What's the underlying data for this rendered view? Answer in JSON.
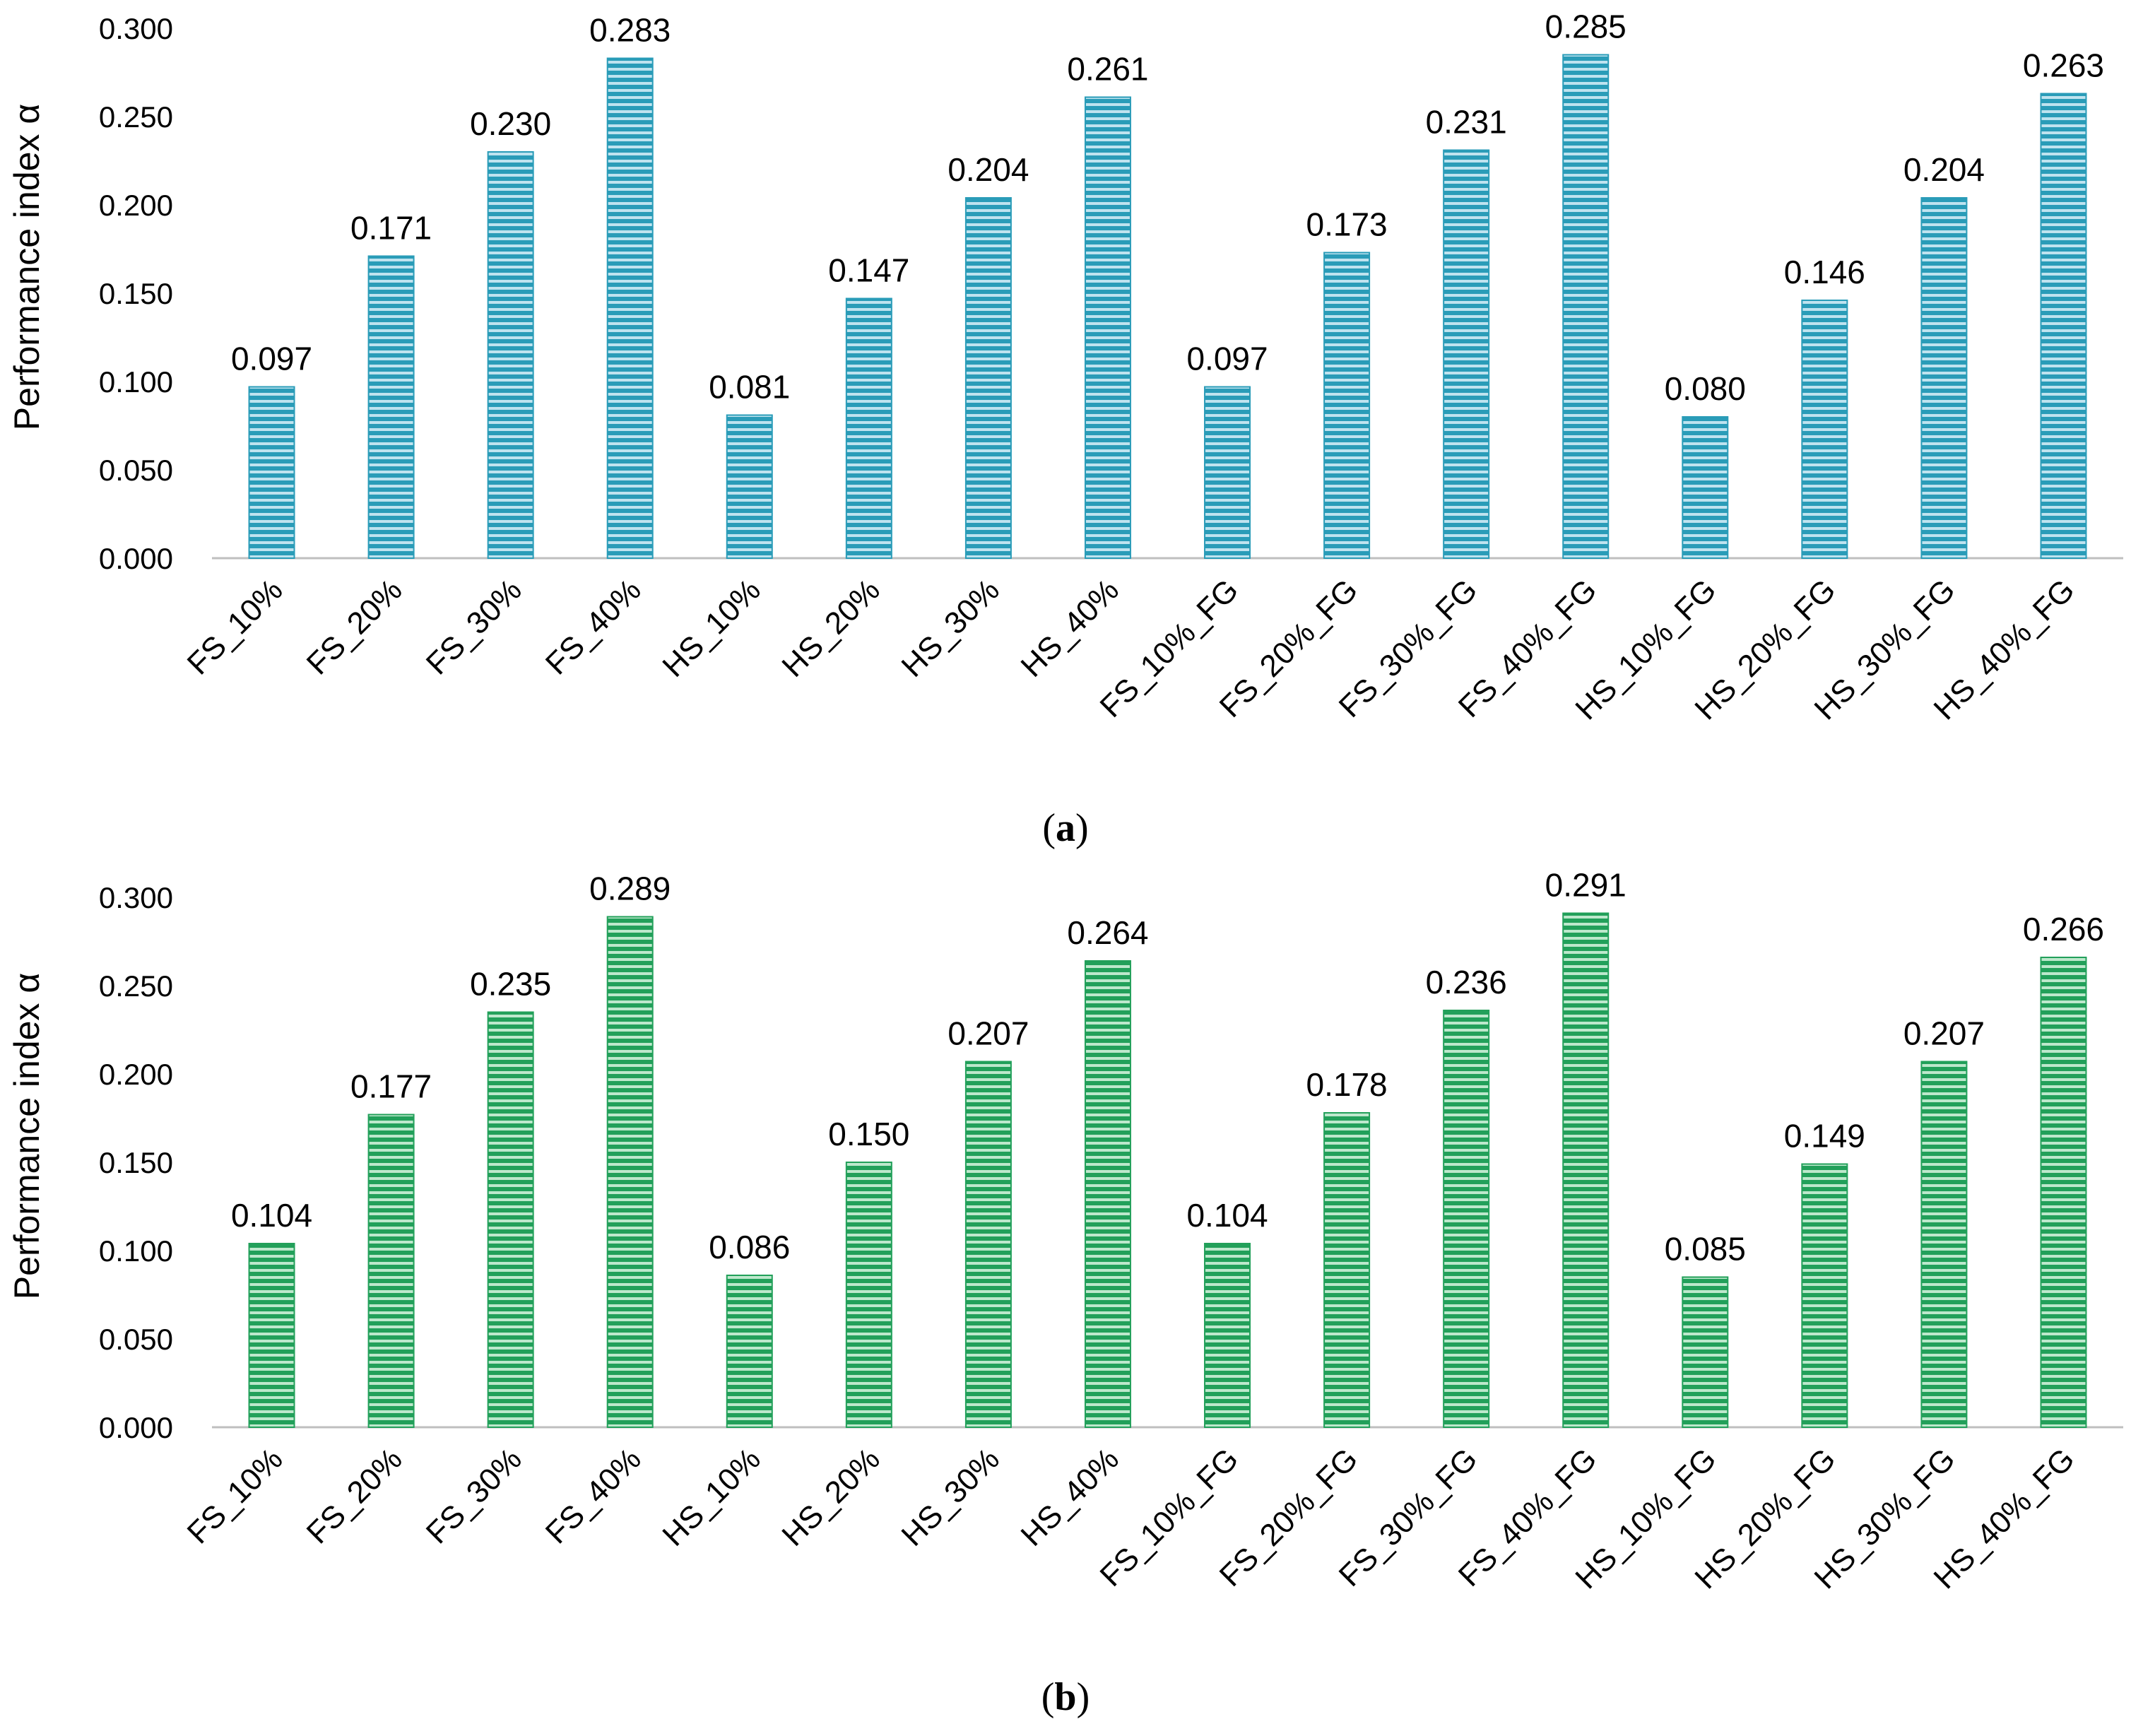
{
  "chart_data": [
    {
      "type": "bar",
      "panel_label": "a",
      "ylabel": "Performance index α",
      "ylim": [
        0,
        0.3
      ],
      "yticks": [
        "0.000",
        "0.050",
        "0.100",
        "0.150",
        "0.200",
        "0.250",
        "0.300"
      ],
      "grid": false,
      "color": "#2a9cb8",
      "categories": [
        "FS_10%",
        "FS_20%",
        "FS_30%",
        "FS_40%",
        "HS_10%",
        "HS_20%",
        "HS_30%",
        "HS_40%",
        "FS_10%_FG",
        "FS_20%_FG",
        "FS_30%_FG",
        "FS_40%_FG",
        "HS_10%_FG",
        "HS_20%_FG",
        "HS_30%_FG",
        "HS_40%_FG"
      ],
      "values": [
        0.097,
        0.171,
        0.23,
        0.283,
        0.081,
        0.147,
        0.204,
        0.261,
        0.097,
        0.173,
        0.231,
        0.285,
        0.08,
        0.146,
        0.204,
        0.263
      ],
      "labels": [
        "0.097",
        "0.171",
        "0.230",
        "0.283",
        "0.081",
        "0.147",
        "0.204",
        "0.261",
        "0.097",
        "0.173",
        "0.231",
        "0.285",
        "0.080",
        "0.146",
        "0.204",
        "0.263"
      ]
    },
    {
      "type": "bar",
      "panel_label": "b",
      "ylabel": "Performance index α",
      "ylim": [
        0,
        0.3
      ],
      "yticks": [
        "0.000",
        "0.050",
        "0.100",
        "0.150",
        "0.200",
        "0.250",
        "0.300"
      ],
      "grid": false,
      "color": "#22a05a",
      "categories": [
        "FS_10%",
        "FS_20%",
        "FS_30%",
        "FS_40%",
        "HS_10%",
        "HS_20%",
        "HS_30%",
        "HS_40%",
        "FS_10%_FG",
        "FS_20%_FG",
        "FS_30%_FG",
        "FS_40%_FG",
        "HS_10%_FG",
        "HS_20%_FG",
        "HS_30%_FG",
        "HS_40%_FG"
      ],
      "values": [
        0.104,
        0.177,
        0.235,
        0.289,
        0.086,
        0.15,
        0.207,
        0.264,
        0.104,
        0.178,
        0.236,
        0.291,
        0.085,
        0.149,
        0.207,
        0.266
      ],
      "labels": [
        "0.104",
        "0.177",
        "0.235",
        "0.289",
        "0.086",
        "0.150",
        "0.207",
        "0.264",
        "0.104",
        "0.178",
        "0.236",
        "0.291",
        "0.085",
        "0.149",
        "0.207",
        "0.266"
      ]
    }
  ]
}
